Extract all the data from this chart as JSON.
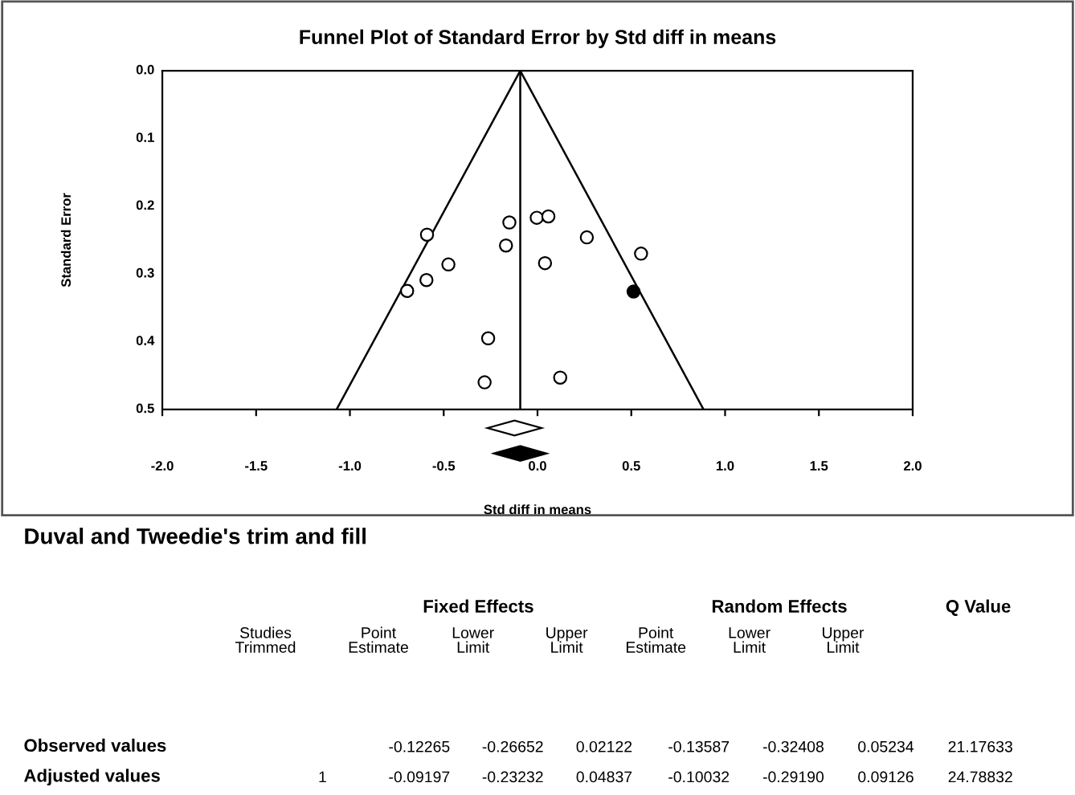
{
  "chart_data": {
    "type": "scatter",
    "title": "Funnel Plot of Standard Error by Std diff in means",
    "xlabel": "Std diff in means",
    "ylabel": "Standard Error",
    "xlim": [
      -2.0,
      2.0
    ],
    "xticks": [
      {
        "value": -2,
        "label": "-2.0"
      },
      -1.5,
      {
        "value": -1,
        "label": "-1.0"
      },
      -0.5,
      {
        "value": 0,
        "label": "0.0"
      },
      0.5,
      {
        "value": 1,
        "label": "1.0"
      },
      1.5,
      {
        "value": 2,
        "label": "2.0"
      }
    ],
    "ylim": [
      0.5,
      0.0
    ],
    "yticks": [
      {
        "value": 0,
        "label": "0.0"
      },
      0.1,
      0.2,
      0.3,
      0.4,
      0.5
    ],
    "grid": false,
    "legend": false,
    "marker": "circle",
    "series": [
      {
        "color": "#ffffff",
        "x": [
          -0.589,
          -0.695,
          -0.592,
          -0.475,
          -0.15,
          -0.168,
          -0.004,
          0.058,
          0.263,
          0.552,
          0.04,
          -0.263,
          -0.282,
          0.121
        ],
        "values": [
          0.242,
          0.325,
          0.309,
          0.286,
          0.224,
          0.258,
          0.217,
          0.215,
          0.246,
          0.27,
          0.284,
          0.395,
          0.46,
          0.453
        ]
      },
      {
        "color": "#000000",
        "x": [
          0.512
        ],
        "values": [
          0.326
        ]
      },
      {
        "type": "line",
        "marker": "none",
        "color": "#000000",
        "x": [
          -1.071,
          -0.092,
          0.885
        ],
        "values": [
          0.5,
          0.0,
          0.5
        ]
      }
    ],
    "ref_lines": [
      {
        "axis": "x",
        "value": -0.09197,
        "color": "#000000"
      }
    ],
    "annotations": [
      "Duval and Tweedie's trim and fill",
      "Fixed Effects",
      "Random Effects",
      "Q Value",
      "Studies\nTrimmed",
      "Point\nEstimate",
      "Lower\nLimit",
      "Upper\nLimit",
      "Point\nEstimate",
      "Lower\nLimit",
      "Upper\nLimit",
      "Observed values",
      "-0.12265",
      "-0.26652",
      "0.02122",
      "-0.13587",
      "-0.32408",
      "0.05234",
      "21.17633",
      "Adjusted values",
      "1",
      "-0.09197",
      "-0.23232",
      "0.04837",
      "-0.10032",
      "-0.29190",
      "0.09126",
      "24.78832"
    ]
  }
}
